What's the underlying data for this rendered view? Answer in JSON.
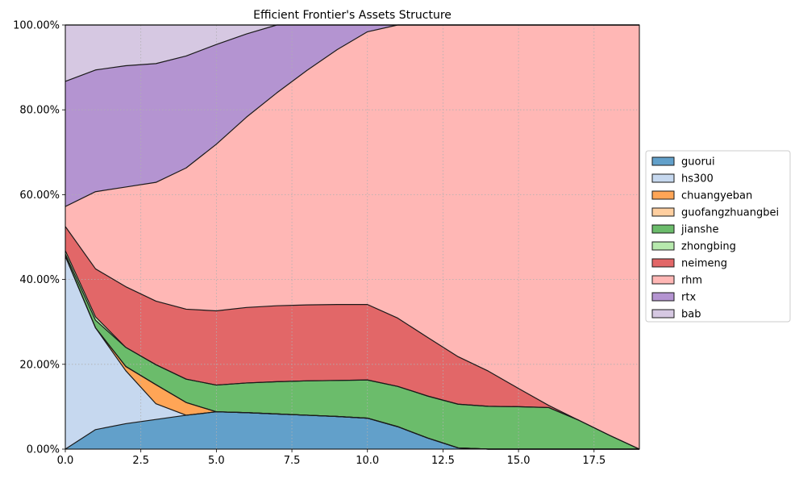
{
  "chart_data": {
    "type": "area",
    "stacked": true,
    "title": "Efficient Frontier's Assets Structure",
    "xlabel": "",
    "ylabel": "",
    "xlim": [
      0,
      19
    ],
    "ylim": [
      0,
      100
    ],
    "x_ticks": [
      0,
      2.5,
      5,
      7.5,
      10,
      12.5,
      15,
      17.5
    ],
    "x_tick_labels": [
      "0.0",
      "2.5",
      "5.0",
      "7.5",
      "10.0",
      "12.5",
      "15.0",
      "17.5"
    ],
    "y_ticks": [
      0,
      20,
      40,
      60,
      80,
      100
    ],
    "y_tick_labels": [
      "0.00%",
      "20.00%",
      "40.00%",
      "60.00%",
      "80.00%",
      "100.00%"
    ],
    "grid": true,
    "legend_position": "right-outside",
    "x": [
      0,
      1,
      2,
      3,
      4,
      5,
      6,
      7,
      8,
      9,
      10,
      11,
      12,
      13,
      14,
      15,
      16,
      17,
      18,
      19
    ],
    "series": [
      {
        "name": "guorui",
        "color": "#1f77b4",
        "values": [
          0,
          4.6,
          6.0,
          7.0,
          8.0,
          8.8,
          8.6,
          8.3,
          8.0,
          7.7,
          7.3,
          5.3,
          2.6,
          0.3,
          0,
          0,
          0,
          0,
          0,
          0
        ]
      },
      {
        "name": "hs300",
        "color": "#aec7e8",
        "values": [
          45.5,
          24.0,
          12.5,
          3.7,
          0,
          0,
          0,
          0,
          0,
          0,
          0,
          0,
          0,
          0,
          0,
          0,
          0,
          0,
          0,
          0
        ]
      },
      {
        "name": "chuangyeban",
        "color": "#ff7f0e",
        "values": [
          0,
          0,
          1.0,
          4.5,
          3.0,
          0,
          0,
          0,
          0,
          0,
          0,
          0,
          0,
          0,
          0,
          0,
          0,
          0,
          0,
          0
        ]
      },
      {
        "name": "guofangzhuangbei",
        "color": "#ffbb78",
        "values": [
          0,
          0,
          0,
          0,
          0,
          0,
          0,
          0,
          0,
          0,
          0,
          0,
          0,
          0,
          0,
          0,
          0,
          0,
          0,
          0
        ]
      },
      {
        "name": "jianshe",
        "color": "#2ca02c",
        "values": [
          0.5,
          1.8,
          4.5,
          4.7,
          5.5,
          6.3,
          7.0,
          7.6,
          8.1,
          8.5,
          9.0,
          9.5,
          9.9,
          10.3,
          10.1,
          10.0,
          9.8,
          6.8,
          3.3,
          0
        ]
      },
      {
        "name": "zhongbing",
        "color": "#98df8a",
        "values": [
          0.8,
          0.8,
          0,
          0,
          0,
          0,
          0,
          0,
          0,
          0,
          0,
          0,
          0,
          0,
          0,
          0,
          0,
          0,
          0,
          0
        ]
      },
      {
        "name": "neimeng",
        "color": "#d62728",
        "values": [
          5.7,
          11.3,
          14.3,
          15.0,
          16.5,
          17.5,
          17.8,
          17.9,
          17.9,
          17.9,
          17.8,
          16.1,
          13.8,
          11.2,
          8.3,
          4.3,
          0.5,
          0,
          0,
          0
        ]
      },
      {
        "name": "rhm",
        "color": "#ff9896",
        "values": [
          4.7,
          18.2,
          23.5,
          28.0,
          33.3,
          39.3,
          44.9,
          50.2,
          55.3,
          60.1,
          64.3,
          69.1,
          73.7,
          78.2,
          81.6,
          85.7,
          89.7,
          93.2,
          96.7,
          100
        ]
      },
      {
        "name": "rtx",
        "color": "#9467bd",
        "values": [
          29.5,
          28.7,
          28.6,
          28.0,
          26.4,
          23.5,
          19.6,
          16.0,
          10.7,
          5.8,
          1.6,
          0,
          0,
          0,
          0,
          0,
          0,
          0,
          0,
          0
        ]
      },
      {
        "name": "bab",
        "color": "#c5b0d5",
        "values": [
          13.3,
          10.6,
          9.6,
          9.1,
          7.3,
          4.6,
          2.1,
          0,
          0,
          0,
          0,
          0,
          0,
          0,
          0,
          0,
          0,
          0,
          0,
          0
        ]
      }
    ]
  }
}
